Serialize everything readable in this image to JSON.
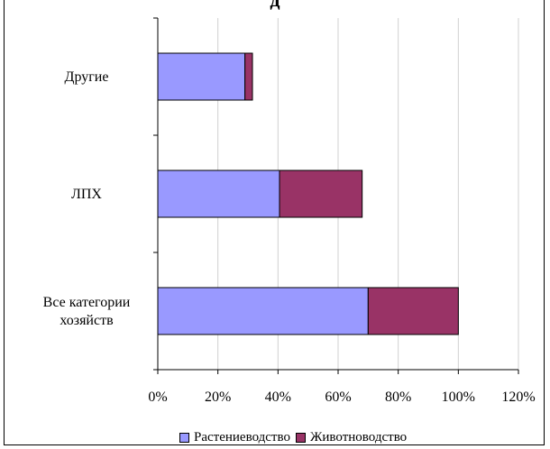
{
  "chart_data": {
    "type": "bar",
    "orientation": "horizontal",
    "stacked": true,
    "title": "д",
    "categories": [
      "Все категории хозяйств",
      "ЛПХ",
      "Другие"
    ],
    "category_label_lines": [
      [
        "Все категории",
        "хозяйств"
      ],
      [
        "ЛПХ"
      ],
      [
        "Другие"
      ]
    ],
    "series": [
      {
        "name": "Растениеводство",
        "color": "#9999FF",
        "values": [
          70,
          40.5,
          29
        ]
      },
      {
        "name": "Животноводство",
        "color": "#993366",
        "values": [
          30,
          27.5,
          2.5
        ]
      }
    ],
    "xlim": [
      0,
      120
    ],
    "xticks": [
      0,
      20,
      40,
      60,
      80,
      100,
      120
    ],
    "tick_suffix": "%",
    "grid": true,
    "legend_position": "bottom"
  }
}
